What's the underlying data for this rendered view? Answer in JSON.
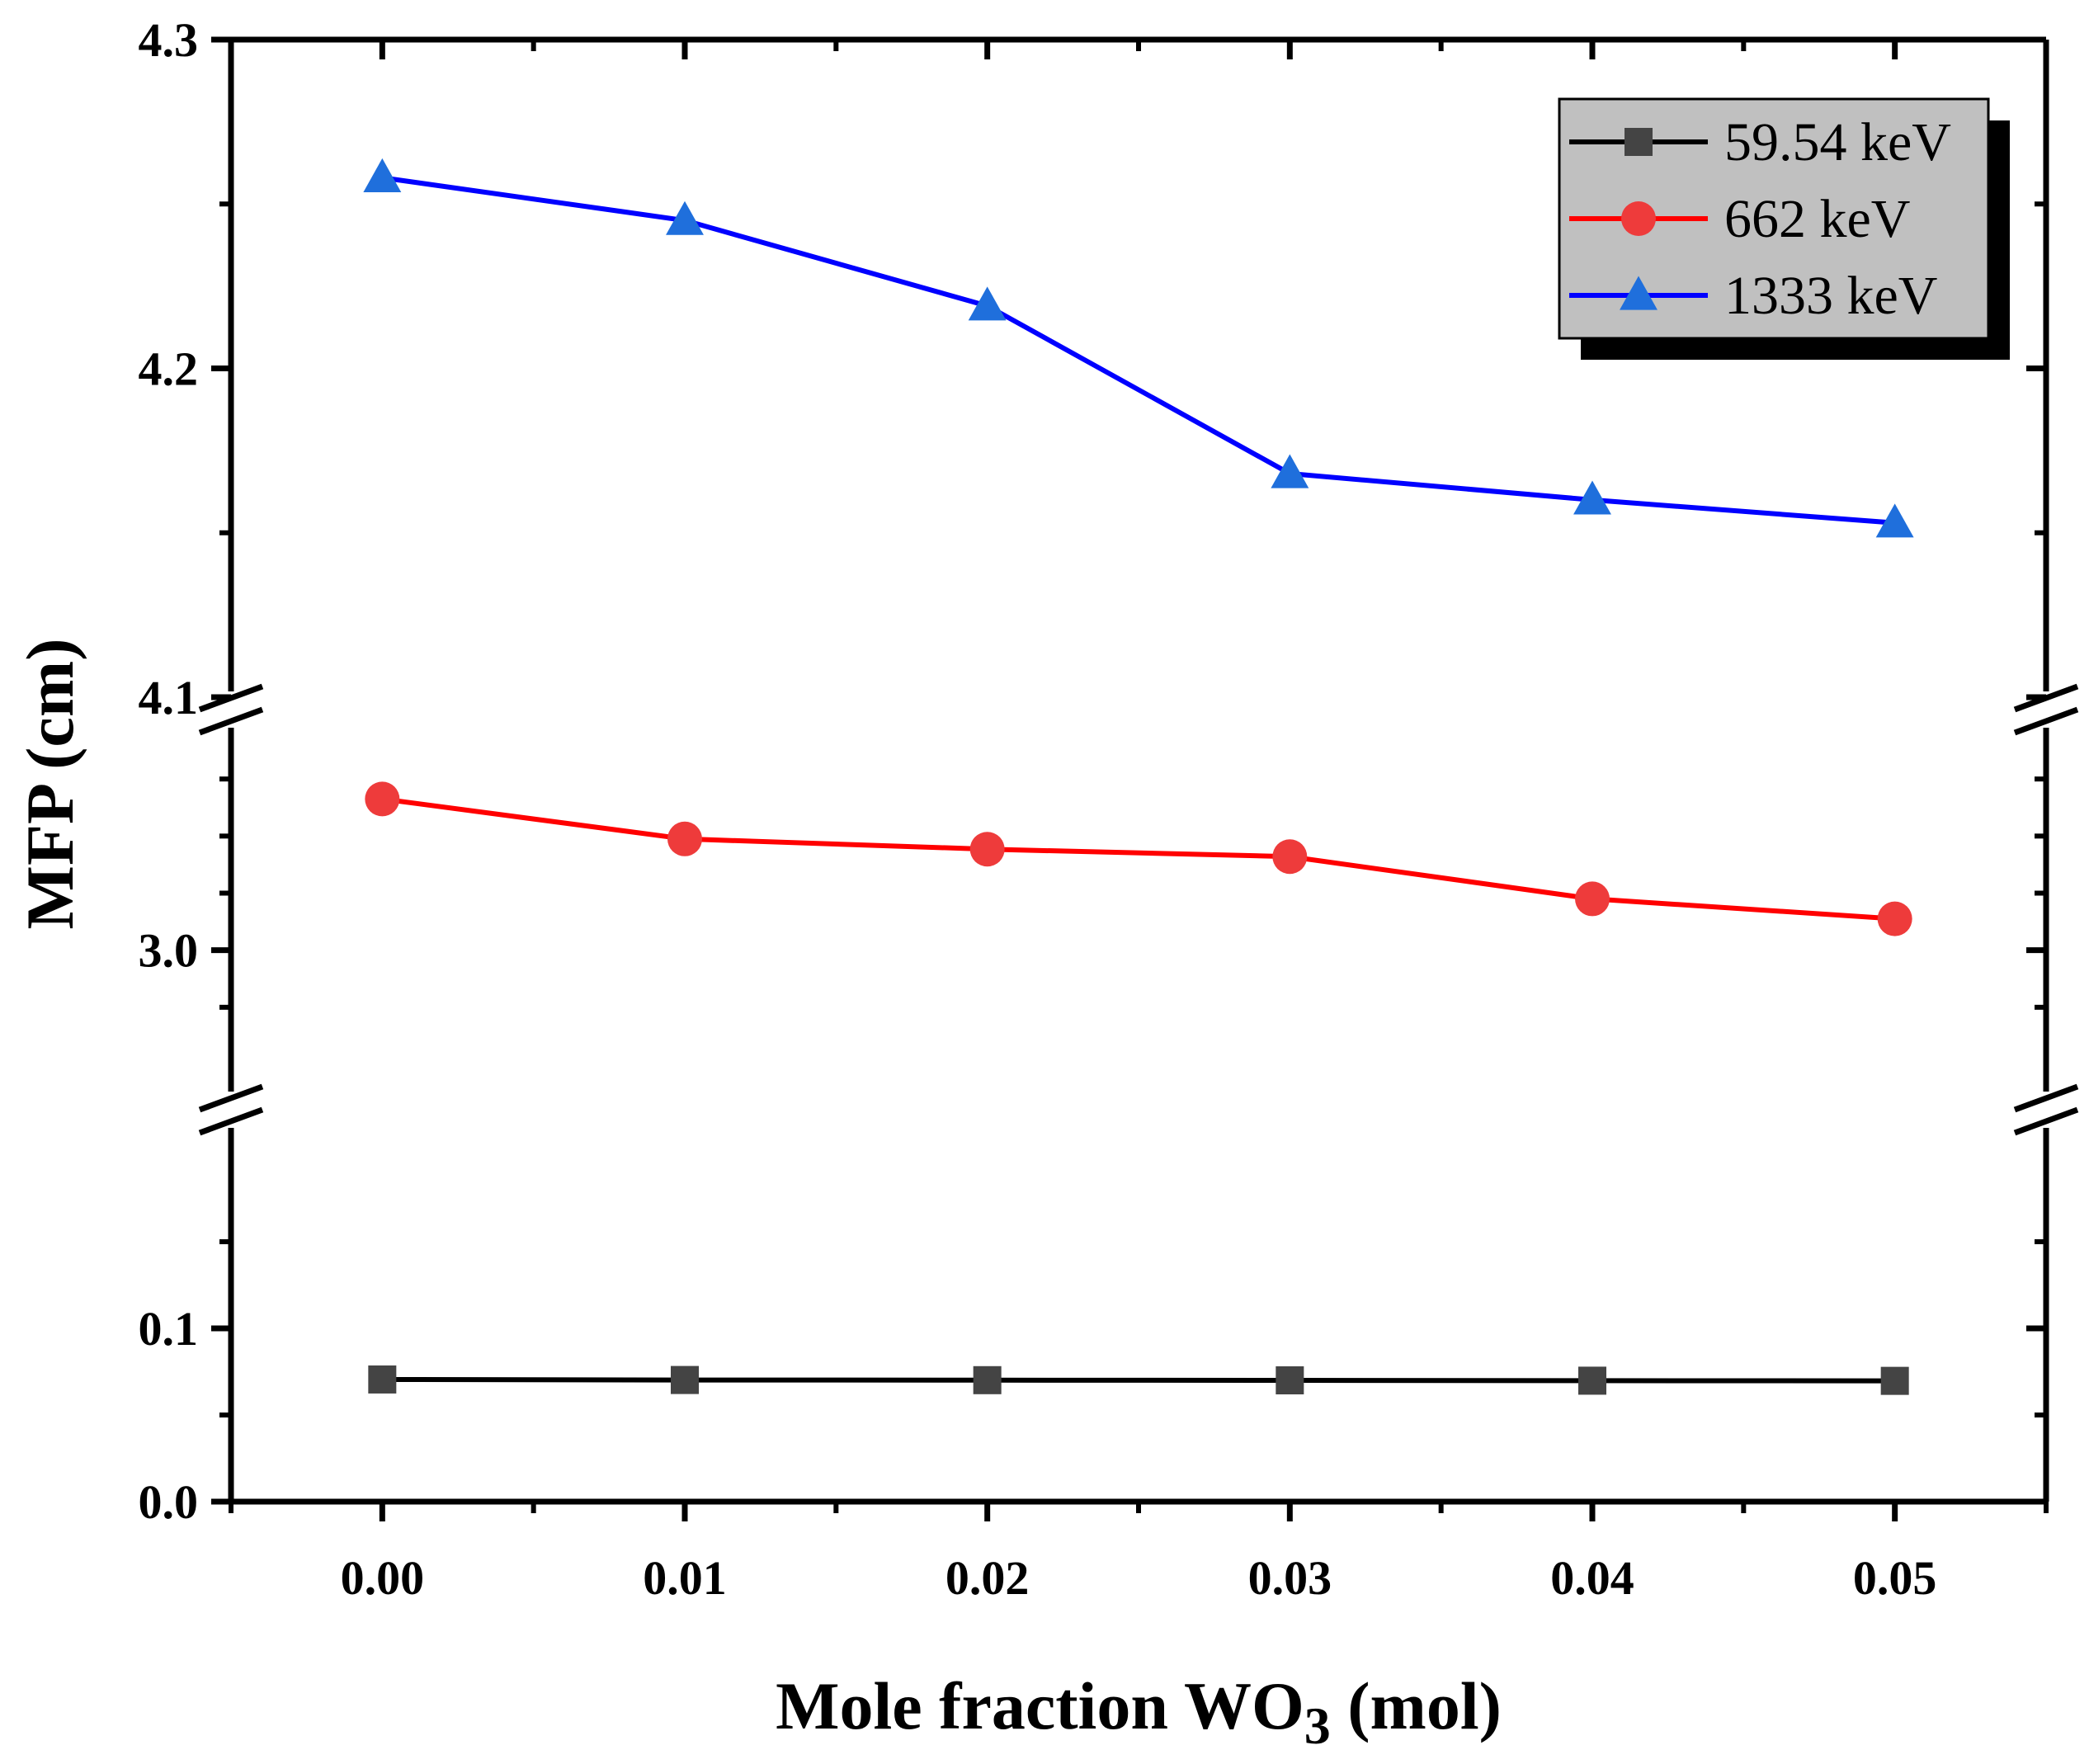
{
  "chart_data": {
    "type": "line",
    "xlabel_main": "Mole fraction WO",
    "xlabel_sub": "3",
    "xlabel_tail": " (mol)",
    "ylabel": "MFP (cm)",
    "x": [
      0.0,
      0.01,
      0.02,
      0.03,
      0.04,
      0.05
    ],
    "x_tick_labels": [
      "0.00",
      "0.01",
      "0.02",
      "0.03",
      "0.04",
      "0.05"
    ],
    "xlim": [
      -0.005,
      0.055
    ],
    "y_axis_break": true,
    "y_segments": [
      {
        "ylim": [
          0.0,
          0.2
        ],
        "tick_values": [
          0.0,
          0.1
        ],
        "tick_labels": [
          "0.0",
          "0.1"
        ]
      },
      {
        "ylim": [
          2.8,
          3.4
        ],
        "tick_values": [
          3.0
        ],
        "tick_labels": [
          "3.0"
        ]
      },
      {
        "ylim": [
          4.1,
          4.3
        ],
        "tick_values": [
          4.1,
          4.2,
          4.3
        ],
        "tick_labels": [
          "4.1",
          "4.2",
          "4.3"
        ]
      }
    ],
    "series": [
      {
        "name": "59.54 keV",
        "color": "#000000",
        "marker_color": "#444444",
        "marker": "square",
        "values": [
          0.0705,
          0.0702,
          0.0701,
          0.07,
          0.0698,
          0.0697
        ]
      },
      {
        "name": "662 keV",
        "color": "#ff0000",
        "marker_color": "#ee3b3b",
        "marker": "circle",
        "values": [
          3.265,
          3.195,
          3.177,
          3.164,
          3.09,
          3.055
        ]
      },
      {
        "name": "1333 keV",
        "color": "#0000ff",
        "marker_color": "#1f6fdc",
        "marker": "triangle",
        "values": [
          4.258,
          4.245,
          4.219,
          4.168,
          4.16,
          4.153
        ]
      }
    ],
    "legend_position": "top-right",
    "grid": false
  }
}
